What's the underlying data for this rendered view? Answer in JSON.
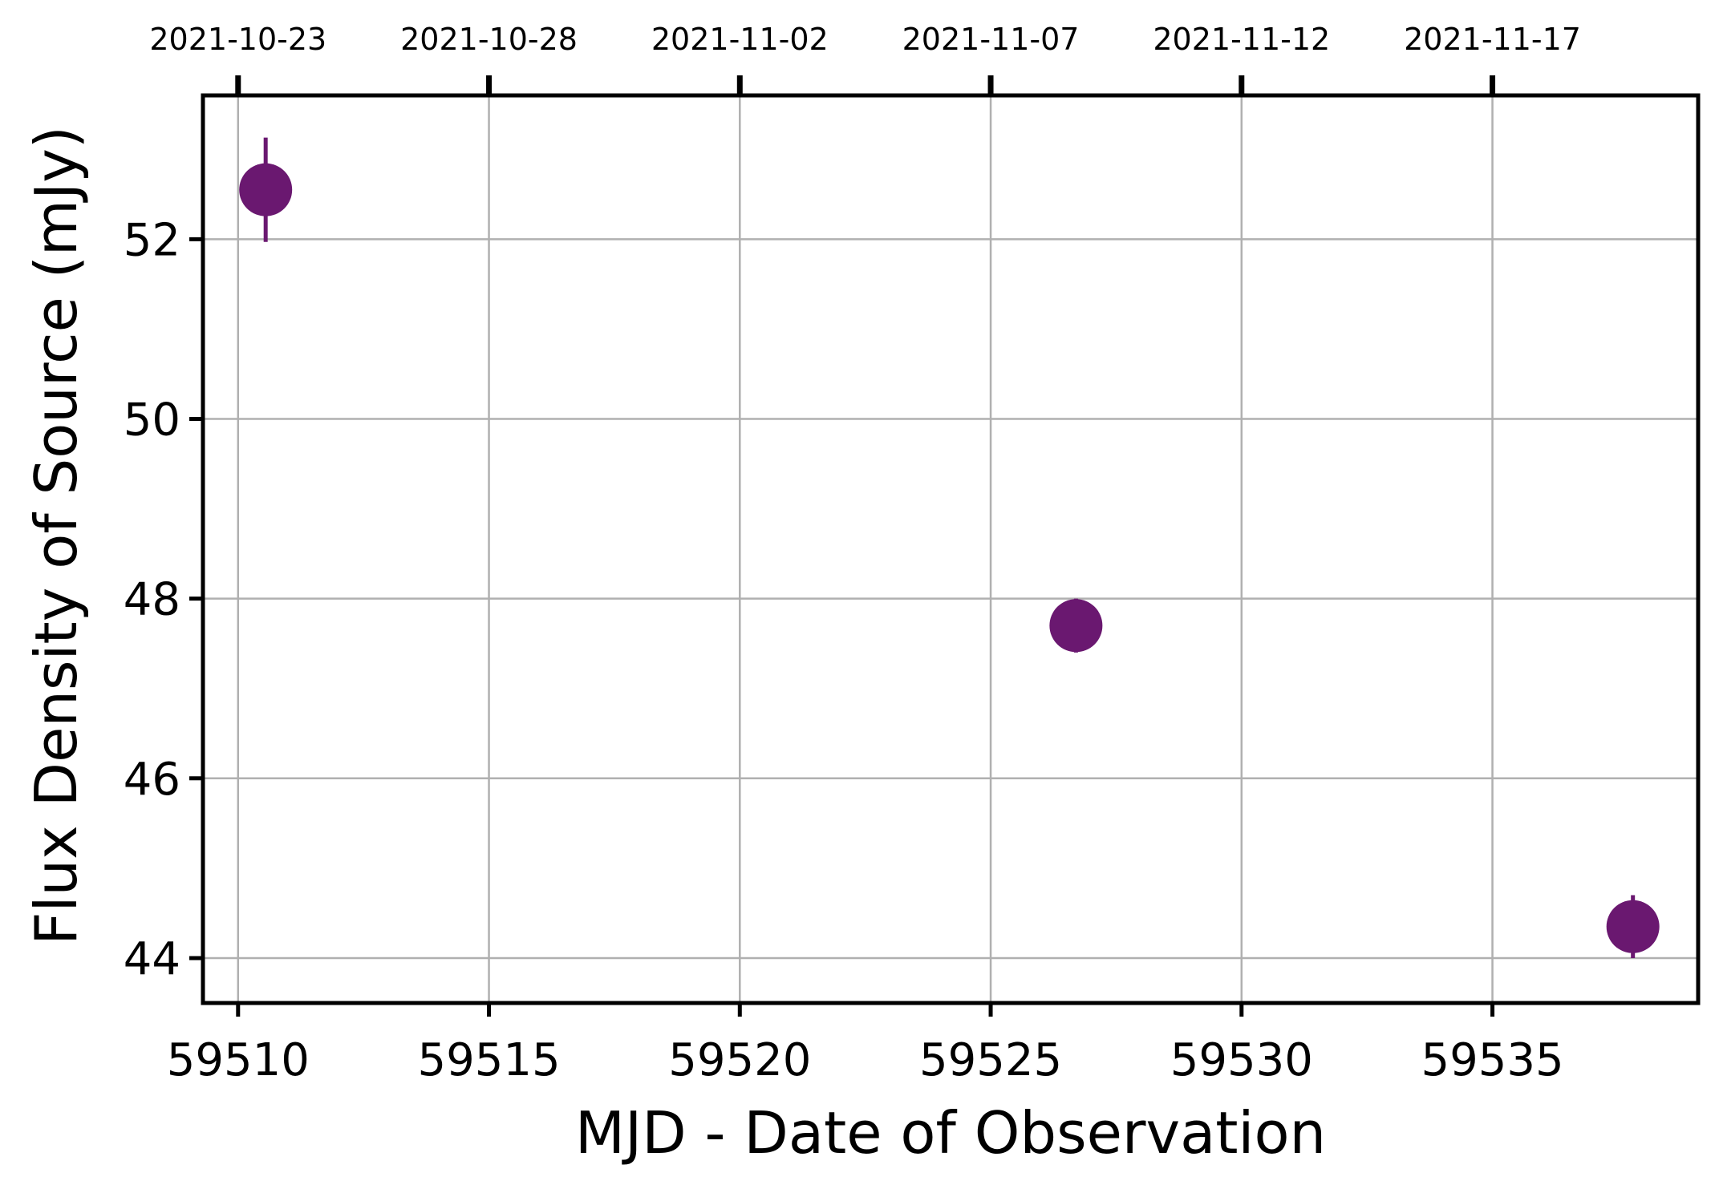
{
  "chart_data": {
    "type": "scatter",
    "title": "",
    "xlabel": "MJD - Date of Observation",
    "ylabel": "Flux Density of Source (mJy)",
    "xlim": [
      59509.3,
      59539.1
    ],
    "ylim": [
      43.5,
      53.6
    ],
    "x_ticks": [
      59510,
      59515,
      59520,
      59525,
      59530,
      59535
    ],
    "x_tick_labels": [
      "59510",
      "59515",
      "59520",
      "59525",
      "59530",
      "59535"
    ],
    "y_ticks": [
      44,
      46,
      48,
      50,
      52
    ],
    "y_tick_labels": [
      "44",
      "46",
      "48",
      "50",
      "52"
    ],
    "top_ticks": [
      59510,
      59515,
      59520,
      59525,
      59530,
      59535
    ],
    "top_tick_labels": [
      "2021-10-23",
      "2021-10-28",
      "2021-11-02",
      "2021-11-07",
      "2021-11-12",
      "2021-11-17"
    ],
    "grid": true,
    "marker_color": "#6a1870",
    "points": [
      {
        "x": 59510.55,
        "y": 52.55,
        "yerr": 0.58
      },
      {
        "x": 59526.7,
        "y": 47.7,
        "yerr": 0.3
      },
      {
        "x": 59537.8,
        "y": 44.35,
        "yerr": 0.35
      }
    ]
  }
}
